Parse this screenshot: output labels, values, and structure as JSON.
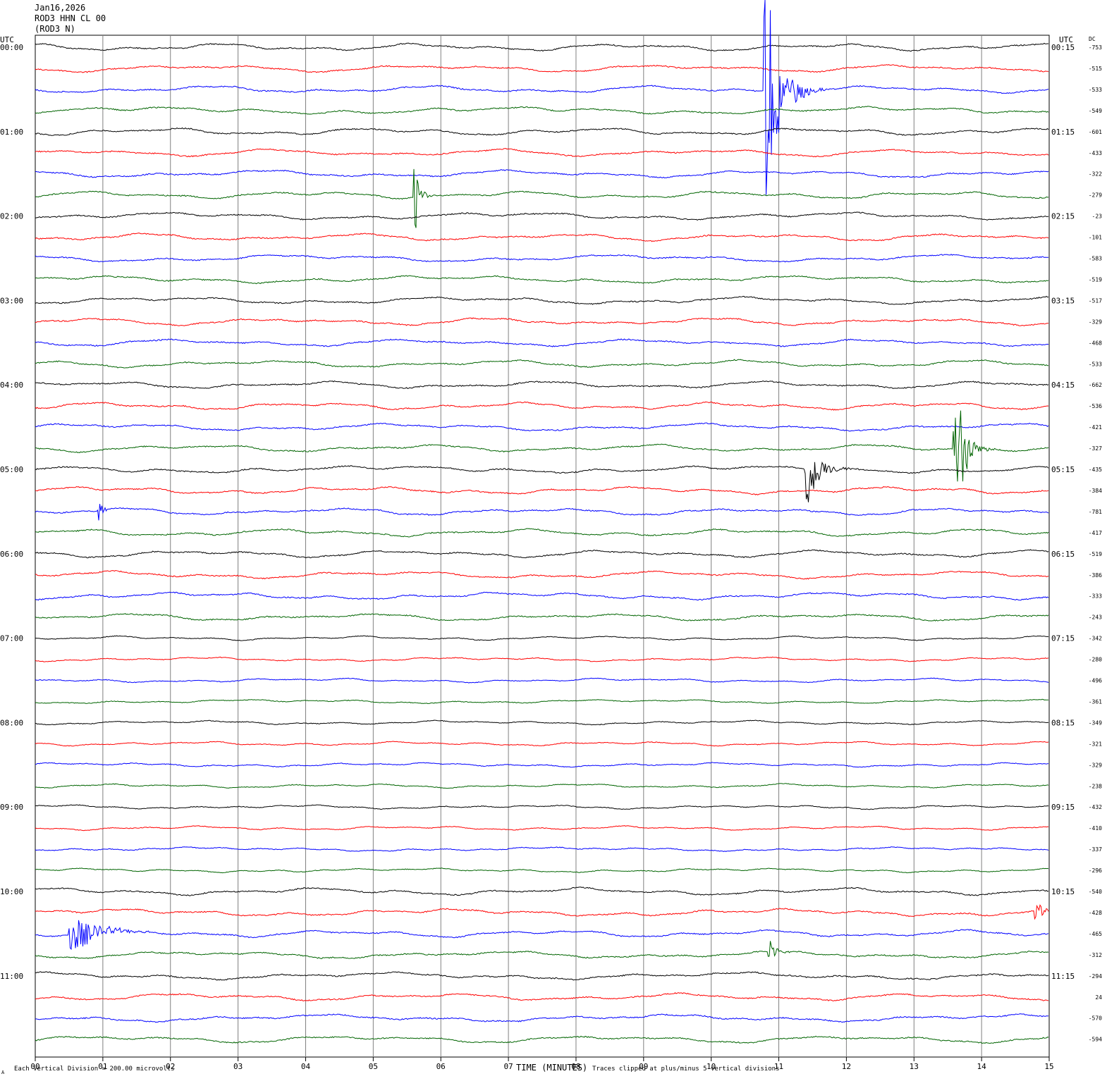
{
  "header": {
    "date": "Jan16,2026",
    "station": "ROD3 HHN CL 00",
    "location": "(ROD3 N)"
  },
  "footer": {
    "scale_note": "Each Vertical Division =  200.00 microvolts",
    "clip_note": "Traces clipped at plus/minus 5 vertical divisions",
    "corner_mark": "A"
  },
  "colors": {
    "trace_cycle": [
      "#000000",
      "#ff0000",
      "#0000ff",
      "#006400"
    ],
    "grid": "#808080"
  },
  "chart_data": {
    "type": "line",
    "title": "Jan16,2026",
    "xlabel": "TIME (MINUTES)",
    "left_axis_label": "UTC",
    "right_axis_label": "UTC",
    "dc_label": "DC",
    "xlim": [
      0,
      15
    ],
    "x_ticks": [
      "00",
      "01",
      "02",
      "03",
      "04",
      "05",
      "06",
      "07",
      "08",
      "09",
      "10",
      "11",
      "12",
      "13",
      "14",
      "15"
    ],
    "left_time_labels": [
      "00:00",
      "01:00",
      "02:00",
      "03:00",
      "04:00",
      "05:00",
      "06:00",
      "07:00",
      "08:00",
      "09:00",
      "10:00",
      "11:00"
    ],
    "right_time_labels": [
      "00:15",
      "01:15",
      "02:15",
      "03:15",
      "04:15",
      "05:15",
      "06:15",
      "07:15",
      "08:15",
      "09:15",
      "10:15",
      "11:15"
    ],
    "dc_offsets": [
      "-753",
      "-515",
      "-533",
      "-549",
      "-601",
      "-433",
      "-322",
      "-279",
      "-23",
      "-101",
      "-583",
      "-519",
      "-517",
      "-329",
      "-468",
      "-533",
      "-662",
      "-536",
      "-421",
      "-327",
      "-435",
      "-384",
      "-781",
      "-417",
      "-519",
      "-386",
      "-333",
      "-243",
      "-342",
      "-280",
      "-496",
      "-361",
      "-349",
      "-321",
      "-329",
      "-238",
      "-432",
      "-410",
      "-337",
      "-296",
      "-540",
      "-428",
      "-465",
      "-312",
      "-294",
      "24",
      "-570",
      "-594"
    ],
    "events": [
      {
        "trace": 2,
        "minute": 10.8,
        "amplitude": 6.0,
        "duration": 0.9
      },
      {
        "trace": 7,
        "minute": 5.62,
        "amplitude": 2.0,
        "duration": 0.3
      },
      {
        "trace": 19,
        "minute": 13.6,
        "amplitude": 4.5,
        "duration": 0.6
      },
      {
        "trace": 20,
        "minute": 11.4,
        "amplitude": 2.2,
        "duration": 0.8
      },
      {
        "trace": 22,
        "minute": 0.95,
        "amplitude": 0.6,
        "duration": 0.2
      },
      {
        "trace": 41,
        "minute": 14.8,
        "amplitude": 0.8,
        "duration": 0.4
      },
      {
        "trace": 42,
        "minute": 0.5,
        "amplitude": 1.1,
        "duration": 1.6
      },
      {
        "trace": 43,
        "minute": 10.85,
        "amplitude": 0.7,
        "duration": 0.5
      }
    ]
  }
}
